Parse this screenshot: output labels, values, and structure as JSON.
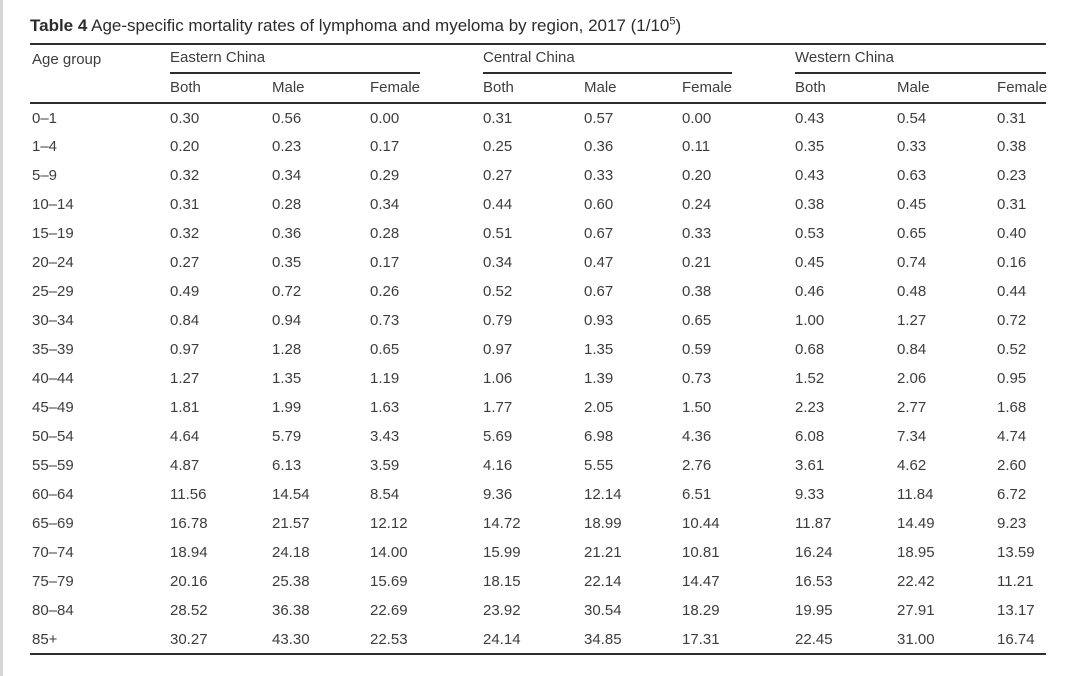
{
  "page": {
    "background": "#ffffff",
    "text_color": "#3d3d3d",
    "rule_color": "#2e2e2e"
  },
  "table": {
    "label": "Table 4",
    "title": " Age-specific mortality rates of lymphoma and myeloma by region, 2017 (1/10",
    "title_superscript": "5",
    "title_suffix": ")",
    "age_group_header": "Age group",
    "regions": [
      "Eastern China",
      "Central China",
      "Western China"
    ],
    "subheaders": [
      "Both",
      "Male",
      "Female"
    ],
    "rows": [
      {
        "age": "0–1",
        "values": [
          "0.30",
          "0.56",
          "0.00",
          "0.31",
          "0.57",
          "0.00",
          "0.43",
          "0.54",
          "0.31"
        ]
      },
      {
        "age": "1–4",
        "values": [
          "0.20",
          "0.23",
          "0.17",
          "0.25",
          "0.36",
          "0.11",
          "0.35",
          "0.33",
          "0.38"
        ]
      },
      {
        "age": "5–9",
        "values": [
          "0.32",
          "0.34",
          "0.29",
          "0.27",
          "0.33",
          "0.20",
          "0.43",
          "0.63",
          "0.23"
        ]
      },
      {
        "age": "10–14",
        "values": [
          "0.31",
          "0.28",
          "0.34",
          "0.44",
          "0.60",
          "0.24",
          "0.38",
          "0.45",
          "0.31"
        ]
      },
      {
        "age": "15–19",
        "values": [
          "0.32",
          "0.36",
          "0.28",
          "0.51",
          "0.67",
          "0.33",
          "0.53",
          "0.65",
          "0.40"
        ]
      },
      {
        "age": "20–24",
        "values": [
          "0.27",
          "0.35",
          "0.17",
          "0.34",
          "0.47",
          "0.21",
          "0.45",
          "0.74",
          "0.16"
        ]
      },
      {
        "age": "25–29",
        "values": [
          "0.49",
          "0.72",
          "0.26",
          "0.52",
          "0.67",
          "0.38",
          "0.46",
          "0.48",
          "0.44"
        ]
      },
      {
        "age": "30–34",
        "values": [
          "0.84",
          "0.94",
          "0.73",
          "0.79",
          "0.93",
          "0.65",
          "1.00",
          "1.27",
          "0.72"
        ]
      },
      {
        "age": "35–39",
        "values": [
          "0.97",
          "1.28",
          "0.65",
          "0.97",
          "1.35",
          "0.59",
          "0.68",
          "0.84",
          "0.52"
        ]
      },
      {
        "age": "40–44",
        "values": [
          "1.27",
          "1.35",
          "1.19",
          "1.06",
          "1.39",
          "0.73",
          "1.52",
          "2.06",
          "0.95"
        ]
      },
      {
        "age": "45–49",
        "values": [
          "1.81",
          "1.99",
          "1.63",
          "1.77",
          "2.05",
          "1.50",
          "2.23",
          "2.77",
          "1.68"
        ]
      },
      {
        "age": "50–54",
        "values": [
          "4.64",
          "5.79",
          "3.43",
          "5.69",
          "6.98",
          "4.36",
          "6.08",
          "7.34",
          "4.74"
        ]
      },
      {
        "age": "55–59",
        "values": [
          "4.87",
          "6.13",
          "3.59",
          "4.16",
          "5.55",
          "2.76",
          "3.61",
          "4.62",
          "2.60"
        ]
      },
      {
        "age": "60–64",
        "values": [
          "11.56",
          "14.54",
          "8.54",
          "9.36",
          "12.14",
          "6.51",
          "9.33",
          "11.84",
          "6.72"
        ]
      },
      {
        "age": "65–69",
        "values": [
          "16.78",
          "21.57",
          "12.12",
          "14.72",
          "18.99",
          "10.44",
          "11.87",
          "14.49",
          "9.23"
        ]
      },
      {
        "age": "70–74",
        "values": [
          "18.94",
          "24.18",
          "14.00",
          "15.99",
          "21.21",
          "10.81",
          "16.24",
          "18.95",
          "13.59"
        ]
      },
      {
        "age": "75–79",
        "values": [
          "20.16",
          "25.38",
          "15.69",
          "18.15",
          "22.14",
          "14.47",
          "16.53",
          "22.42",
          "11.21"
        ]
      },
      {
        "age": "80–84",
        "values": [
          "28.52",
          "36.38",
          "22.69",
          "23.92",
          "30.54",
          "18.29",
          "19.95",
          "27.91",
          "13.17"
        ]
      },
      {
        "age": "85+",
        "values": [
          "30.27",
          "43.30",
          "22.53",
          "24.14",
          "34.85",
          "17.31",
          "22.45",
          "31.00",
          "16.74"
        ]
      }
    ]
  }
}
